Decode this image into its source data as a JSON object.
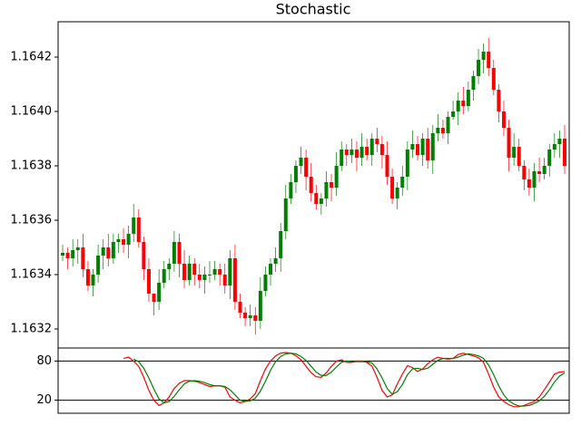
{
  "chart_data": [
    {
      "type": "candlestick",
      "title": "Stochastic",
      "open": [
        1.16347,
        1.16348,
        1.16346,
        1.16349,
        1.1635,
        1.16342,
        1.16336,
        1.1634,
        1.16347,
        1.1635,
        1.16346,
        1.16352,
        1.16353,
        1.16351,
        1.16355,
        1.16361,
        1.16352,
        1.16342,
        1.16333,
        1.1633,
        1.16337,
        1.16342,
        1.16344,
        1.16352,
        1.16344,
        1.16338,
        1.16344,
        1.1634,
        1.16338,
        1.1634,
        1.1634,
        1.16342,
        1.1634,
        1.16336,
        1.16346,
        1.1633,
        1.16326,
        1.16324,
        1.16325,
        1.16323,
        1.16334,
        1.1634,
        1.16344,
        1.16346,
        1.16356,
        1.16368,
        1.16374,
        1.1638,
        1.16383,
        1.16376,
        1.1637,
        1.16366,
        1.16368,
        1.16374,
        1.16372,
        1.1638,
        1.16386,
        1.16384,
        1.16386,
        1.16383,
        1.16387,
        1.16384,
        1.1639,
        1.16388,
        1.16384,
        1.16376,
        1.16368,
        1.16372,
        1.16376,
        1.16386,
        1.16388,
        1.16384,
        1.1639,
        1.16382,
        1.16392,
        1.16394,
        1.16392,
        1.16398,
        1.164,
        1.16404,
        1.16402,
        1.16408,
        1.16413,
        1.16419,
        1.16422,
        1.16416,
        1.16408,
        1.164,
        1.16394,
        1.16383,
        1.16387,
        1.1638,
        1.16375,
        1.16372,
        1.16378,
        1.16377,
        1.1638,
        1.16386,
        1.16388,
        1.1639
      ],
      "close": [
        1.16348,
        1.16346,
        1.16349,
        1.1635,
        1.16342,
        1.16336,
        1.1634,
        1.16347,
        1.1635,
        1.16346,
        1.16352,
        1.16353,
        1.16351,
        1.16355,
        1.16361,
        1.16352,
        1.16342,
        1.16333,
        1.1633,
        1.16337,
        1.16342,
        1.16344,
        1.16352,
        1.16344,
        1.16338,
        1.16344,
        1.1634,
        1.16338,
        1.1634,
        1.1634,
        1.16342,
        1.1634,
        1.16336,
        1.16346,
        1.1633,
        1.16326,
        1.16324,
        1.16325,
        1.16323,
        1.16334,
        1.1634,
        1.16344,
        1.16346,
        1.16356,
        1.16368,
        1.16374,
        1.1638,
        1.16383,
        1.16376,
        1.1637,
        1.16366,
        1.16368,
        1.16374,
        1.16372,
        1.1638,
        1.16386,
        1.16384,
        1.16386,
        1.16383,
        1.16387,
        1.16384,
        1.1639,
        1.16388,
        1.16384,
        1.16376,
        1.16368,
        1.16372,
        1.16376,
        1.16386,
        1.16388,
        1.16384,
        1.1639,
        1.16382,
        1.16392,
        1.16394,
        1.16392,
        1.16398,
        1.164,
        1.16404,
        1.16402,
        1.16408,
        1.16413,
        1.16419,
        1.16422,
        1.16416,
        1.16408,
        1.164,
        1.16394,
        1.16383,
        1.16387,
        1.1638,
        1.16375,
        1.16372,
        1.16378,
        1.16377,
        1.1638,
        1.16386,
        1.16388,
        1.1639,
        1.1638
      ],
      "high": [
        1.16351,
        1.1635,
        1.16353,
        1.16353,
        1.16355,
        1.16345,
        1.16342,
        1.16351,
        1.16353,
        1.16355,
        1.16355,
        1.16355,
        1.16357,
        1.16358,
        1.16366,
        1.16364,
        1.16354,
        1.16346,
        1.16333,
        1.16342,
        1.16345,
        1.16346,
        1.16356,
        1.16355,
        1.16349,
        1.16347,
        1.16346,
        1.16344,
        1.16343,
        1.16345,
        1.16345,
        1.16344,
        1.16344,
        1.16349,
        1.16351,
        1.16333,
        1.16328,
        1.16329,
        1.16328,
        1.16339,
        1.16343,
        1.16346,
        1.1635,
        1.16359,
        1.16373,
        1.16377,
        1.16382,
        1.16387,
        1.16386,
        1.16381,
        1.16373,
        1.1637,
        1.16378,
        1.16377,
        1.16385,
        1.16389,
        1.16388,
        1.1639,
        1.16389,
        1.16392,
        1.1639,
        1.16392,
        1.16394,
        1.16391,
        1.16389,
        1.16379,
        1.16374,
        1.1638,
        1.16389,
        1.16393,
        1.16391,
        1.16392,
        1.16394,
        1.16395,
        1.16399,
        1.16397,
        1.164,
        1.16404,
        1.16407,
        1.16409,
        1.16411,
        1.16415,
        1.16423,
        1.16425,
        1.16427,
        1.16419,
        1.1641,
        1.16404,
        1.16397,
        1.16392,
        1.1639,
        1.16382,
        1.16379,
        1.16381,
        1.16383,
        1.16383,
        1.16388,
        1.16392,
        1.16393,
        1.16395
      ],
      "low": [
        1.16345,
        1.16342,
        1.16343,
        1.16344,
        1.16339,
        1.16334,
        1.16332,
        1.16337,
        1.16342,
        1.16343,
        1.16344,
        1.16348,
        1.16348,
        1.16346,
        1.16352,
        1.1635,
        1.16338,
        1.1633,
        1.16325,
        1.16327,
        1.16335,
        1.16338,
        1.16341,
        1.16339,
        1.16335,
        1.16336,
        1.16336,
        1.16335,
        1.16333,
        1.16337,
        1.16338,
        1.16336,
        1.16333,
        1.16331,
        1.16327,
        1.16324,
        1.16321,
        1.16321,
        1.16318,
        1.1632,
        1.16332,
        1.16336,
        1.16341,
        1.16341,
        1.16353,
        1.16366,
        1.1637,
        1.16377,
        1.16371,
        1.16367,
        1.16364,
        1.16362,
        1.16365,
        1.16367,
        1.16369,
        1.16378,
        1.1638,
        1.16381,
        1.16378,
        1.1638,
        1.16382,
        1.1638,
        1.16385,
        1.16379,
        1.16373,
        1.16366,
        1.16364,
        1.16369,
        1.16371,
        1.16383,
        1.16382,
        1.1638,
        1.16379,
        1.16377,
        1.16389,
        1.1639,
        1.16388,
        1.16397,
        1.16395,
        1.16399,
        1.164,
        1.16404,
        1.1641,
        1.16414,
        1.16413,
        1.16406,
        1.16396,
        1.16391,
        1.16378,
        1.1638,
        1.16378,
        1.16371,
        1.16369,
        1.16367,
        1.16374,
        1.16375,
        1.16376,
        1.16383,
        1.16383,
        1.16377
      ],
      "up_color": "#008000",
      "down_color": "#ff0000",
      "ylim": [
        1.16313,
        1.16433
      ],
      "yticks": [
        1.1632,
        1.1634,
        1.1636,
        1.1638,
        {
          "value": 1.164,
          "label": "1.1640"
        },
        1.1642
      ]
    },
    {
      "type": "line",
      "series": [
        {
          "color": "#ff0000",
          "values": [
            null,
            null,
            null,
            null,
            null,
            null,
            null,
            null,
            null,
            null,
            null,
            null,
            84,
            86,
            80,
            72,
            55,
            35,
            20,
            12,
            16,
            25,
            38,
            46,
            50,
            50,
            49,
            47,
            44,
            41,
            42,
            42,
            40,
            25,
            20,
            16,
            18,
            22,
            30,
            50,
            68,
            80,
            88,
            92,
            93,
            92,
            88,
            82,
            72,
            62,
            56,
            55,
            62,
            72,
            80,
            82,
            78,
            78,
            80,
            80,
            78,
            72,
            55,
            35,
            25,
            28,
            45,
            60,
            73,
            70,
            64,
            68,
            76,
            82,
            86,
            84,
            83,
            84,
            90,
            92,
            90,
            88,
            85,
            78,
            60,
            40,
            25,
            18,
            13,
            10,
            10,
            12,
            15,
            18,
            25,
            36,
            48,
            60,
            63,
            64
          ]
        },
        {
          "color": "#008000",
          "values": [
            null,
            null,
            null,
            null,
            null,
            null,
            null,
            null,
            null,
            null,
            null,
            null,
            null,
            null,
            83,
            79,
            69,
            54,
            37,
            22,
            16,
            18,
            26,
            36,
            45,
            49,
            50,
            49,
            47,
            44,
            42,
            42,
            41,
            36,
            28,
            20,
            18,
            19,
            23,
            34,
            49,
            66,
            79,
            87,
            91,
            92,
            91,
            87,
            81,
            72,
            63,
            58,
            58,
            63,
            71,
            78,
            80,
            79,
            79,
            79,
            79,
            77,
            68,
            54,
            38,
            29,
            33,
            44,
            59,
            68,
            69,
            67,
            69,
            75,
            81,
            84,
            84,
            84,
            86,
            89,
            91,
            90,
            88,
            84,
            74,
            59,
            42,
            28,
            19,
            14,
            11,
            11,
            12,
            15,
            19,
            26,
            36,
            48,
            57,
            62
          ]
        }
      ],
      "ylim": [
        0,
        100
      ],
      "yticks": [
        20,
        80
      ],
      "grid": true
    }
  ]
}
